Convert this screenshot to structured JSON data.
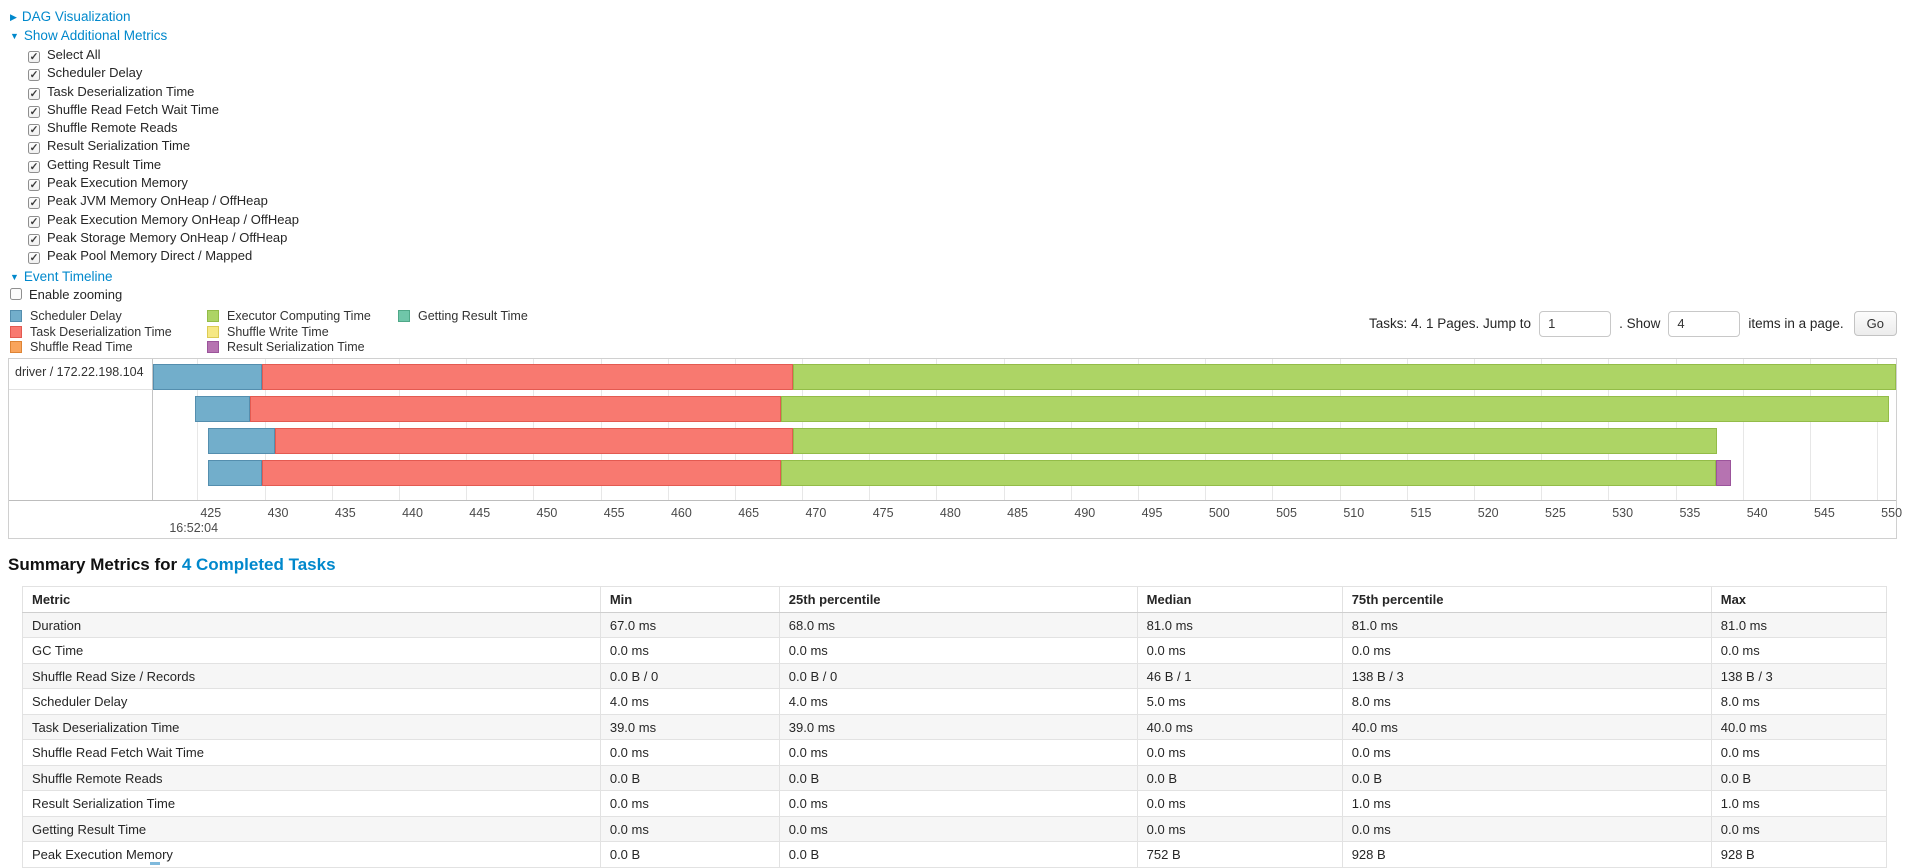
{
  "icons": {
    "collapsed": "▶",
    "expanded": "▼",
    "check": "✓"
  },
  "toggles": {
    "dag": "DAG Visualization",
    "metrics": "Show Additional Metrics",
    "timeline": "Event Timeline"
  },
  "additional_metrics": [
    "Select All",
    "Scheduler Delay",
    "Task Deserialization Time",
    "Shuffle Read Fetch Wait Time",
    "Shuffle Remote Reads",
    "Result Serialization Time",
    "Getting Result Time",
    "Peak Execution Memory",
    "Peak JVM Memory OnHeap / OffHeap",
    "Peak Execution Memory OnHeap / OffHeap",
    "Peak Storage Memory OnHeap / OffHeap",
    "Peak Pool Memory Direct / Mapped"
  ],
  "enable_zooming_label": "Enable zooming",
  "pagination": {
    "prefix": "Tasks: 4. 1 Pages. Jump to",
    "jump_value": "1",
    "show_label": ". Show",
    "page_size": "4",
    "suffix": "items in a page.",
    "go_label": "Go"
  },
  "chart_data": {
    "type": "timeline",
    "group_label": "driver / 172.22.198.104",
    "x_axis": {
      "unit": "milliseconds within second 16:52:04",
      "window": [
        421.7,
        551.4
      ],
      "tick_step": 5,
      "ticks": [
        425,
        430,
        435,
        440,
        445,
        450,
        455,
        460,
        465,
        470,
        475,
        480,
        485,
        490,
        495,
        500,
        505,
        510,
        515,
        520,
        525,
        530,
        535,
        540,
        545,
        550
      ],
      "major_label": "16:52:04"
    },
    "colors": {
      "scheduler-delay": {
        "fill": "#72AECB",
        "border": "#548EAE"
      },
      "task-deserialization": {
        "fill": "#F87970",
        "border": "#E35A51"
      },
      "shuffle-read": {
        "fill": "#F9A45C",
        "border": "#DE8435"
      },
      "executor-computing": {
        "fill": "#ADD465",
        "border": "#93BC48"
      },
      "shuffle-write": {
        "fill": "#F6E884",
        "border": "#DCCB55"
      },
      "result-serialization": {
        "fill": "#B673B1",
        "border": "#9B549B"
      },
      "getting-result": {
        "fill": "#6FC6A9",
        "border": "#4FA888"
      }
    },
    "legend_columns": [
      [
        {
          "key": "scheduler-delay",
          "label": "Scheduler Delay"
        },
        {
          "key": "task-deserialization",
          "label": "Task Deserialization Time"
        },
        {
          "key": "shuffle-read",
          "label": "Shuffle Read Time"
        }
      ],
      [
        {
          "key": "executor-computing",
          "label": "Executor Computing Time"
        },
        {
          "key": "shuffle-write",
          "label": "Shuffle Write Time"
        },
        {
          "key": "result-serialization",
          "label": "Result Serialization Time"
        }
      ],
      [
        {
          "key": "getting-result",
          "label": "Getting Result Time"
        }
      ]
    ],
    "tasks": [
      {
        "segments": [
          {
            "name": "scheduler-delay",
            "start": 421.7,
            "end": 429.8
          },
          {
            "name": "task-deserialization",
            "start": 429.8,
            "end": 469.3
          },
          {
            "name": "executor-computing",
            "start": 469.3,
            "end": 551.4
          }
        ]
      },
      {
        "segments": [
          {
            "name": "scheduler-delay",
            "start": 424.8,
            "end": 428.9
          },
          {
            "name": "task-deserialization",
            "start": 428.9,
            "end": 468.4
          },
          {
            "name": "executor-computing",
            "start": 468.4,
            "end": 550.9
          }
        ]
      },
      {
        "segments": [
          {
            "name": "scheduler-delay",
            "start": 425.8,
            "end": 430.8
          },
          {
            "name": "task-deserialization",
            "start": 430.8,
            "end": 469.3
          },
          {
            "name": "executor-computing",
            "start": 469.3,
            "end": 538.1
          }
        ]
      },
      {
        "segments": [
          {
            "name": "scheduler-delay",
            "start": 425.8,
            "end": 429.8
          },
          {
            "name": "task-deserialization",
            "start": 429.8,
            "end": 468.4
          },
          {
            "name": "executor-computing",
            "start": 468.4,
            "end": 538.0
          },
          {
            "name": "result-serialization",
            "start": 538.0,
            "end": 539.1
          }
        ]
      }
    ]
  },
  "summary_metrics": {
    "heading_prefix": "Summary Metrics for ",
    "heading_link": "4 Completed Tasks",
    "columns": [
      "Metric",
      "Min",
      "25th percentile",
      "Median",
      "75th percentile",
      "Max"
    ],
    "rows": [
      [
        "Duration",
        "67.0 ms",
        "68.0 ms",
        "81.0 ms",
        "81.0 ms",
        "81.0 ms"
      ],
      [
        "GC Time",
        "0.0 ms",
        "0.0 ms",
        "0.0 ms",
        "0.0 ms",
        "0.0 ms"
      ],
      [
        "Shuffle Read Size / Records",
        "0.0 B / 0",
        "0.0 B / 0",
        "46 B / 1",
        "138 B / 3",
        "138 B / 3"
      ],
      [
        "Scheduler Delay",
        "4.0 ms",
        "4.0 ms",
        "5.0 ms",
        "8.0 ms",
        "8.0 ms"
      ],
      [
        "Task Deserialization Time",
        "39.0 ms",
        "39.0 ms",
        "40.0 ms",
        "40.0 ms",
        "40.0 ms"
      ],
      [
        "Shuffle Read Fetch Wait Time",
        "0.0 ms",
        "0.0 ms",
        "0.0 ms",
        "0.0 ms",
        "0.0 ms"
      ],
      [
        "Shuffle Remote Reads",
        "0.0 B",
        "0.0 B",
        "0.0 B",
        "0.0 B",
        "0.0 B"
      ],
      [
        "Result Serialization Time",
        "0.0 ms",
        "0.0 ms",
        "0.0 ms",
        "1.0 ms",
        "1.0 ms"
      ],
      [
        "Getting Result Time",
        "0.0 ms",
        "0.0 ms",
        "0.0 ms",
        "0.0 ms",
        "0.0 ms"
      ],
      [
        "Peak Execution Memory",
        "0.0 B",
        "0.0 B",
        "752 B",
        "928 B",
        "928 B"
      ]
    ]
  }
}
